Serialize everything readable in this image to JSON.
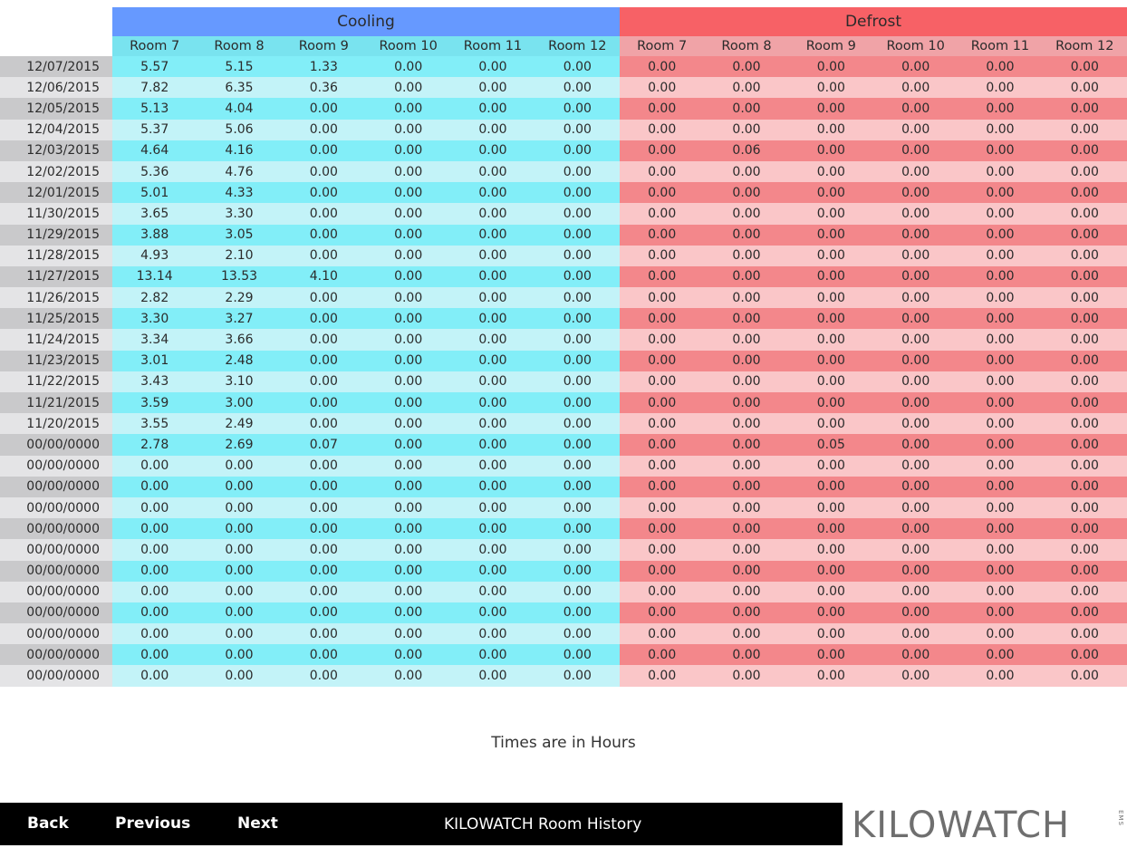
{
  "table": {
    "groups": [
      {
        "label": "Cooling",
        "rooms": [
          "Room 7",
          "Room 8",
          "Room 9",
          "Room 10",
          "Room 11",
          "Room 12"
        ]
      },
      {
        "label": "Defrost",
        "rooms": [
          "Room 7",
          "Room 8",
          "Room 9",
          "Room 10",
          "Room 11",
          "Room 12"
        ]
      }
    ],
    "rows": [
      {
        "date": "12/07/2015",
        "cooling": [
          "5.57",
          "5.15",
          "1.33",
          "0.00",
          "0.00",
          "0.00"
        ],
        "defrost": [
          "0.00",
          "0.00",
          "0.00",
          "0.00",
          "0.00",
          "0.00"
        ]
      },
      {
        "date": "12/06/2015",
        "cooling": [
          "7.82",
          "6.35",
          "0.36",
          "0.00",
          "0.00",
          "0.00"
        ],
        "defrost": [
          "0.00",
          "0.00",
          "0.00",
          "0.00",
          "0.00",
          "0.00"
        ]
      },
      {
        "date": "12/05/2015",
        "cooling": [
          "5.13",
          "4.04",
          "0.00",
          "0.00",
          "0.00",
          "0.00"
        ],
        "defrost": [
          "0.00",
          "0.00",
          "0.00",
          "0.00",
          "0.00",
          "0.00"
        ]
      },
      {
        "date": "12/04/2015",
        "cooling": [
          "5.37",
          "5.06",
          "0.00",
          "0.00",
          "0.00",
          "0.00"
        ],
        "defrost": [
          "0.00",
          "0.00",
          "0.00",
          "0.00",
          "0.00",
          "0.00"
        ]
      },
      {
        "date": "12/03/2015",
        "cooling": [
          "4.64",
          "4.16",
          "0.00",
          "0.00",
          "0.00",
          "0.00"
        ],
        "defrost": [
          "0.00",
          "0.06",
          "0.00",
          "0.00",
          "0.00",
          "0.00"
        ]
      },
      {
        "date": "12/02/2015",
        "cooling": [
          "5.36",
          "4.76",
          "0.00",
          "0.00",
          "0.00",
          "0.00"
        ],
        "defrost": [
          "0.00",
          "0.00",
          "0.00",
          "0.00",
          "0.00",
          "0.00"
        ]
      },
      {
        "date": "12/01/2015",
        "cooling": [
          "5.01",
          "4.33",
          "0.00",
          "0.00",
          "0.00",
          "0.00"
        ],
        "defrost": [
          "0.00",
          "0.00",
          "0.00",
          "0.00",
          "0.00",
          "0.00"
        ]
      },
      {
        "date": "11/30/2015",
        "cooling": [
          "3.65",
          "3.30",
          "0.00",
          "0.00",
          "0.00",
          "0.00"
        ],
        "defrost": [
          "0.00",
          "0.00",
          "0.00",
          "0.00",
          "0.00",
          "0.00"
        ]
      },
      {
        "date": "11/29/2015",
        "cooling": [
          "3.88",
          "3.05",
          "0.00",
          "0.00",
          "0.00",
          "0.00"
        ],
        "defrost": [
          "0.00",
          "0.00",
          "0.00",
          "0.00",
          "0.00",
          "0.00"
        ]
      },
      {
        "date": "11/28/2015",
        "cooling": [
          "4.93",
          "2.10",
          "0.00",
          "0.00",
          "0.00",
          "0.00"
        ],
        "defrost": [
          "0.00",
          "0.00",
          "0.00",
          "0.00",
          "0.00",
          "0.00"
        ]
      },
      {
        "date": "11/27/2015",
        "cooling": [
          "13.14",
          "13.53",
          "4.10",
          "0.00",
          "0.00",
          "0.00"
        ],
        "defrost": [
          "0.00",
          "0.00",
          "0.00",
          "0.00",
          "0.00",
          "0.00"
        ]
      },
      {
        "date": "11/26/2015",
        "cooling": [
          "2.82",
          "2.29",
          "0.00",
          "0.00",
          "0.00",
          "0.00"
        ],
        "defrost": [
          "0.00",
          "0.00",
          "0.00",
          "0.00",
          "0.00",
          "0.00"
        ]
      },
      {
        "date": "11/25/2015",
        "cooling": [
          "3.30",
          "3.27",
          "0.00",
          "0.00",
          "0.00",
          "0.00"
        ],
        "defrost": [
          "0.00",
          "0.00",
          "0.00",
          "0.00",
          "0.00",
          "0.00"
        ]
      },
      {
        "date": "11/24/2015",
        "cooling": [
          "3.34",
          "3.66",
          "0.00",
          "0.00",
          "0.00",
          "0.00"
        ],
        "defrost": [
          "0.00",
          "0.00",
          "0.00",
          "0.00",
          "0.00",
          "0.00"
        ]
      },
      {
        "date": "11/23/2015",
        "cooling": [
          "3.01",
          "2.48",
          "0.00",
          "0.00",
          "0.00",
          "0.00"
        ],
        "defrost": [
          "0.00",
          "0.00",
          "0.00",
          "0.00",
          "0.00",
          "0.00"
        ]
      },
      {
        "date": "11/22/2015",
        "cooling": [
          "3.43",
          "3.10",
          "0.00",
          "0.00",
          "0.00",
          "0.00"
        ],
        "defrost": [
          "0.00",
          "0.00",
          "0.00",
          "0.00",
          "0.00",
          "0.00"
        ]
      },
      {
        "date": "11/21/2015",
        "cooling": [
          "3.59",
          "3.00",
          "0.00",
          "0.00",
          "0.00",
          "0.00"
        ],
        "defrost": [
          "0.00",
          "0.00",
          "0.00",
          "0.00",
          "0.00",
          "0.00"
        ]
      },
      {
        "date": "11/20/2015",
        "cooling": [
          "3.55",
          "2.49",
          "0.00",
          "0.00",
          "0.00",
          "0.00"
        ],
        "defrost": [
          "0.00",
          "0.00",
          "0.00",
          "0.00",
          "0.00",
          "0.00"
        ]
      },
      {
        "date": "00/00/0000",
        "cooling": [
          "2.78",
          "2.69",
          "0.07",
          "0.00",
          "0.00",
          "0.00"
        ],
        "defrost": [
          "0.00",
          "0.00",
          "0.05",
          "0.00",
          "0.00",
          "0.00"
        ]
      },
      {
        "date": "00/00/0000",
        "cooling": [
          "0.00",
          "0.00",
          "0.00",
          "0.00",
          "0.00",
          "0.00"
        ],
        "defrost": [
          "0.00",
          "0.00",
          "0.00",
          "0.00",
          "0.00",
          "0.00"
        ]
      },
      {
        "date": "00/00/0000",
        "cooling": [
          "0.00",
          "0.00",
          "0.00",
          "0.00",
          "0.00",
          "0.00"
        ],
        "defrost": [
          "0.00",
          "0.00",
          "0.00",
          "0.00",
          "0.00",
          "0.00"
        ]
      },
      {
        "date": "00/00/0000",
        "cooling": [
          "0.00",
          "0.00",
          "0.00",
          "0.00",
          "0.00",
          "0.00"
        ],
        "defrost": [
          "0.00",
          "0.00",
          "0.00",
          "0.00",
          "0.00",
          "0.00"
        ]
      },
      {
        "date": "00/00/0000",
        "cooling": [
          "0.00",
          "0.00",
          "0.00",
          "0.00",
          "0.00",
          "0.00"
        ],
        "defrost": [
          "0.00",
          "0.00",
          "0.00",
          "0.00",
          "0.00",
          "0.00"
        ]
      },
      {
        "date": "00/00/0000",
        "cooling": [
          "0.00",
          "0.00",
          "0.00",
          "0.00",
          "0.00",
          "0.00"
        ],
        "defrost": [
          "0.00",
          "0.00",
          "0.00",
          "0.00",
          "0.00",
          "0.00"
        ]
      },
      {
        "date": "00/00/0000",
        "cooling": [
          "0.00",
          "0.00",
          "0.00",
          "0.00",
          "0.00",
          "0.00"
        ],
        "defrost": [
          "0.00",
          "0.00",
          "0.00",
          "0.00",
          "0.00",
          "0.00"
        ]
      },
      {
        "date": "00/00/0000",
        "cooling": [
          "0.00",
          "0.00",
          "0.00",
          "0.00",
          "0.00",
          "0.00"
        ],
        "defrost": [
          "0.00",
          "0.00",
          "0.00",
          "0.00",
          "0.00",
          "0.00"
        ]
      },
      {
        "date": "00/00/0000",
        "cooling": [
          "0.00",
          "0.00",
          "0.00",
          "0.00",
          "0.00",
          "0.00"
        ],
        "defrost": [
          "0.00",
          "0.00",
          "0.00",
          "0.00",
          "0.00",
          "0.00"
        ]
      },
      {
        "date": "00/00/0000",
        "cooling": [
          "0.00",
          "0.00",
          "0.00",
          "0.00",
          "0.00",
          "0.00"
        ],
        "defrost": [
          "0.00",
          "0.00",
          "0.00",
          "0.00",
          "0.00",
          "0.00"
        ]
      },
      {
        "date": "00/00/0000",
        "cooling": [
          "0.00",
          "0.00",
          "0.00",
          "0.00",
          "0.00",
          "0.00"
        ],
        "defrost": [
          "0.00",
          "0.00",
          "0.00",
          "0.00",
          "0.00",
          "0.00"
        ]
      },
      {
        "date": "00/00/0000",
        "cooling": [
          "0.00",
          "0.00",
          "0.00",
          "0.00",
          "0.00",
          "0.00"
        ],
        "defrost": [
          "0.00",
          "0.00",
          "0.00",
          "0.00",
          "0.00",
          "0.00"
        ]
      }
    ]
  },
  "note": "Times are in Hours",
  "footer": {
    "back_label": "Back",
    "previous_label": "Previous",
    "next_label": "Next",
    "title": "KILOWATCH Room History"
  },
  "logo": {
    "text": "KILOWATCH",
    "subtext": "EMS"
  },
  "colors": {
    "cooling_header": "#6699ff",
    "defrost_header": "#f76166",
    "cooling_row_dark": "#82eef8",
    "cooling_row_light": "#c3f3f8",
    "defrost_row_dark": "#f3878b",
    "defrost_row_light": "#fac6c8",
    "footer_bg": "#000000"
  }
}
